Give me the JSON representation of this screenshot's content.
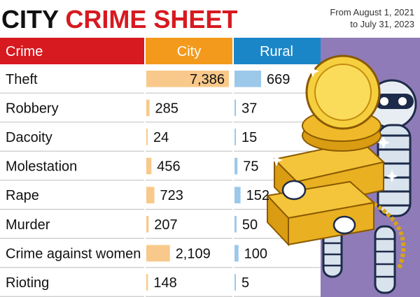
{
  "header": {
    "title_part1": "CITY",
    "title_part2": "CRIME SHEET",
    "date_line1": "From August 1, 2021",
    "date_line2": "to July 31, 2023"
  },
  "colors": {
    "crime_header": "#d71920",
    "city_header": "#f39a1d",
    "rural_header": "#1a86c8",
    "city_bar": "#f8c98a",
    "rural_bar": "#9cc8ea",
    "row_line": "#bdbdbd",
    "illustration_bg": "#8e7bb8"
  },
  "chart_data": {
    "type": "table",
    "columns": [
      "Crime",
      "City",
      "Rural"
    ],
    "categories": [
      "Theft",
      "Robbery",
      "Dacoity",
      "Molestation",
      "Rape",
      "Murder",
      "Crime against women",
      "Rioting"
    ],
    "series": [
      {
        "name": "City",
        "values": [
          7386,
          285,
          24,
          456,
          723,
          207,
          2109,
          148
        ],
        "labels": [
          "7,386",
          "285",
          "24",
          "456",
          "723",
          "207",
          "2,109",
          "148"
        ]
      },
      {
        "name": "Rural",
        "values": [
          669,
          37,
          15,
          75,
          152,
          50,
          100,
          5
        ],
        "labels": [
          "669",
          "37",
          "15",
          "75",
          "152",
          "50",
          "100",
          "5"
        ]
      }
    ]
  }
}
